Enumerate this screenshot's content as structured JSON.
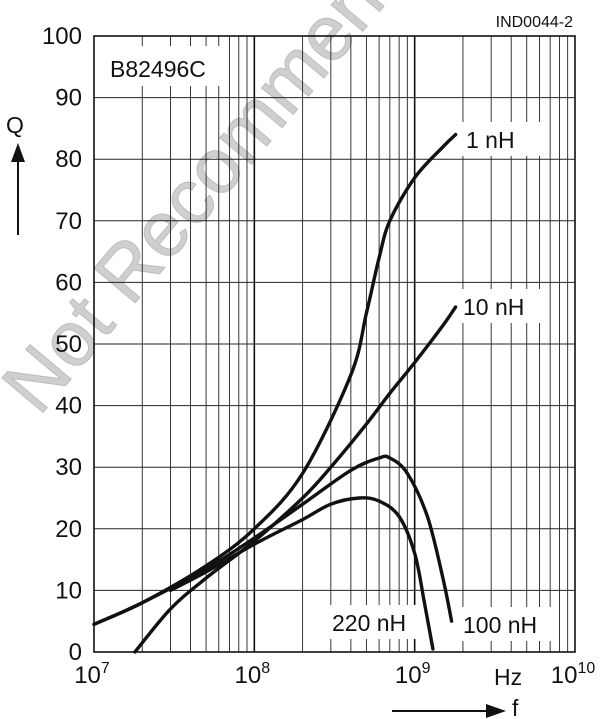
{
  "chart_data": {
    "type": "line",
    "doc_id": "IND0044-2",
    "part_number": "B82496C",
    "watermark": "Not Recommended",
    "x_axis": {
      "label": "f",
      "unit": "Hz",
      "scale": "log",
      "range": [
        10000000,
        10000000000
      ],
      "tick_labels": [
        {
          "base": "10",
          "exp": "7"
        },
        {
          "base": "10",
          "exp": "8"
        },
        {
          "base": "10",
          "exp": "9"
        },
        {
          "base": "10",
          "exp": "10"
        }
      ]
    },
    "y_axis": {
      "label": "Q",
      "range": [
        0,
        100
      ],
      "ticks": [
        "0",
        "10",
        "20",
        "30",
        "40",
        "50",
        "60",
        "70",
        "80",
        "90",
        "100"
      ]
    },
    "grid": true,
    "series": [
      {
        "name": "1 nH",
        "x": [
          10000000,
          20000000,
          50000000,
          100000000,
          200000000,
          400000000,
          500000000,
          600000000,
          700000000,
          1000000000,
          1500000000,
          1800000000
        ],
        "y": [
          4.5,
          8,
          14,
          20,
          29,
          45,
          55,
          64,
          70,
          77,
          82,
          84
        ]
      },
      {
        "name": "10 nH",
        "x": [
          18000000,
          30000000,
          50000000,
          100000000,
          200000000,
          300000000,
          500000000,
          700000000,
          1000000000,
          1500000000,
          1800000000
        ],
        "y": [
          0,
          7,
          12,
          18,
          25,
          30,
          37,
          42,
          47,
          53,
          56
        ]
      },
      {
        "name": "100 nH",
        "x": [
          10000000,
          20000000,
          50000000,
          100000000,
          200000000,
          400000000,
          600000000,
          700000000,
          900000000,
          1200000000,
          1500000000,
          1700000000
        ],
        "y": [
          4.5,
          8,
          13.5,
          18.5,
          24,
          29.5,
          31.5,
          31.5,
          29,
          22,
          12,
          5
        ]
      },
      {
        "name": "220 nH",
        "x": [
          30000000,
          50000000,
          100000000,
          200000000,
          300000000,
          450000000,
          600000000,
          800000000,
          1000000000,
          1150000000,
          1300000000
        ],
        "y": [
          10,
          13,
          17.5,
          21.5,
          24,
          25,
          24.5,
          22,
          16,
          8,
          0.5
        ]
      }
    ]
  }
}
